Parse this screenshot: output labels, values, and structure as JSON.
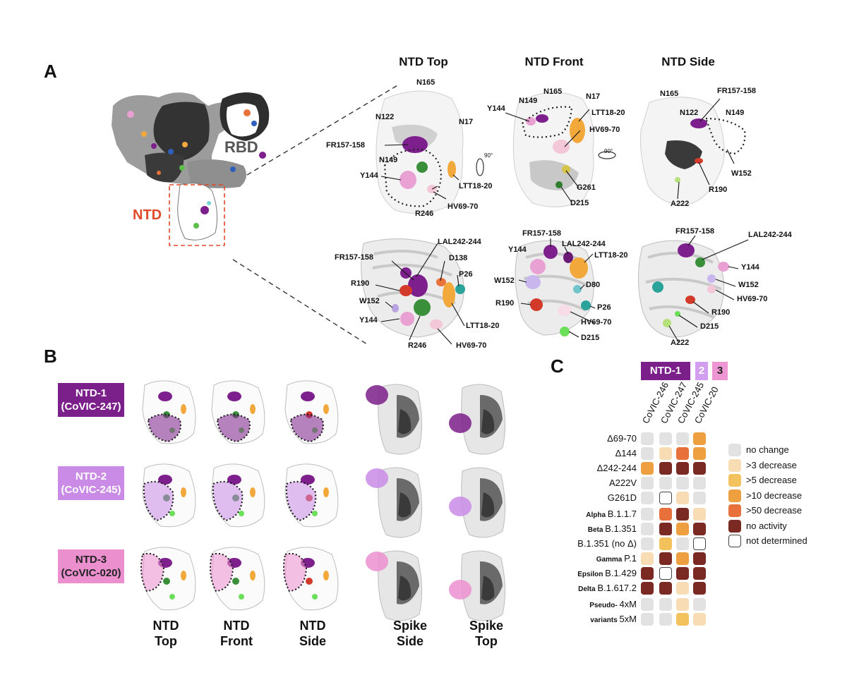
{
  "panels": {
    "a": "A",
    "b": "B",
    "c": "C"
  },
  "panel_a": {
    "view_titles": [
      "NTD Top",
      "NTD Front",
      "NTD Side"
    ],
    "rbd_label": "RBD",
    "ntd_label": "NTD",
    "labels_top_row": {
      "top": [
        "N165",
        "N122",
        "N17",
        "FR157-158",
        "N149",
        "Y144",
        "LTT18-20",
        "R246",
        "HV69-70"
      ],
      "front": [
        "N165",
        "N149",
        "N17",
        "Y144",
        "LTT18-20",
        "HV69-70",
        "G261",
        "D215"
      ],
      "side": [
        "N165",
        "FR157-158",
        "N122",
        "N149",
        "W152",
        "R190",
        "A222"
      ]
    },
    "labels_bottom_row": {
      "top": [
        "LAL242-244",
        "FR157-158",
        "D138",
        "P26",
        "R190",
        "W152",
        "Y144",
        "LTT18-20",
        "R246",
        "HV69-70"
      ],
      "front": [
        "FR157-158",
        "LAL242-244",
        "Y144",
        "LTT18-20",
        "W152",
        "D80",
        "P26",
        "R190",
        "HV69-70",
        "D215"
      ],
      "side": [
        "FR157-158",
        "LAL242-244",
        "Y144",
        "W152",
        "HV69-70",
        "R190",
        "D215",
        "A222"
      ]
    },
    "rotation_marks": [
      "90°",
      "90°"
    ]
  },
  "panel_b": {
    "antibodies": [
      {
        "name": "NTD-1",
        "clone": "(CoVIC-247)",
        "color": "#7b1f8a"
      },
      {
        "name": "NTD-2",
        "clone": "(CoVIC-245)",
        "color": "#c98be6"
      },
      {
        "name": "NTD-3",
        "clone": "(CoVIC-020)",
        "color": "#ec8fcf"
      }
    ],
    "bottom_labels": [
      {
        "l1": "NTD",
        "l2": "Top"
      },
      {
        "l1": "NTD",
        "l2": "Front"
      },
      {
        "l1": "NTD",
        "l2": "Side"
      },
      {
        "l1": "Spike",
        "l2": "Side"
      },
      {
        "l1": "Spike",
        "l2": "Top"
      }
    ]
  },
  "panel_c": {
    "groups": [
      {
        "label": "NTD-1",
        "color": "#7b1f8a"
      },
      {
        "label": "2",
        "color": "#d39df0"
      },
      {
        "label": "3",
        "color": "#ee95d4"
      }
    ],
    "columns": [
      "CoVIC-246",
      "CoVIC-247",
      "CoVIC-245",
      "CoVIC-20"
    ],
    "rows": [
      {
        "prefix": "",
        "name": "Δ69-70",
        "cells": [
          "nc",
          "nc",
          "nc",
          "d10"
        ]
      },
      {
        "prefix": "",
        "name": "Δ144",
        "cells": [
          "nc",
          "d3",
          "d50",
          "d10"
        ]
      },
      {
        "prefix": "",
        "name": "Δ242-244",
        "cells": [
          "d10",
          "na",
          "na",
          "na"
        ]
      },
      {
        "prefix": "",
        "name": "A222V",
        "cells": [
          "nc",
          "nc",
          "nc",
          "nc"
        ]
      },
      {
        "prefix": "",
        "name": "G261D",
        "cells": [
          "nc",
          "nd",
          "d3",
          "nc"
        ]
      },
      {
        "prefix": "Alpha",
        "name": "B.1.1.7",
        "cells": [
          "nc",
          "d50",
          "na",
          "d3"
        ]
      },
      {
        "prefix": "Beta",
        "name": "B.1.351",
        "cells": [
          "nc",
          "na",
          "d10",
          "na"
        ]
      },
      {
        "prefix": "",
        "name": "B.1.351 (no Δ)",
        "cells": [
          "nc",
          "d5",
          "nc",
          "nd"
        ]
      },
      {
        "prefix": "Gamma",
        "name": "P.1",
        "cells": [
          "d3",
          "na",
          "d10",
          "na"
        ]
      },
      {
        "prefix": "Epsilon",
        "name": "B.1.429",
        "cells": [
          "na",
          "nd",
          "na",
          "na"
        ]
      },
      {
        "prefix": "Delta",
        "name": "B.1.617.2",
        "cells": [
          "na",
          "na",
          "d3",
          "na"
        ]
      },
      {
        "prefix": "Pseudo-",
        "name": "4xM",
        "cells": [
          "nc",
          "nc",
          "d3",
          "nc"
        ]
      },
      {
        "prefix": "variants",
        "name": "5xM",
        "cells": [
          "nc",
          "nc",
          "d5",
          "d3"
        ]
      }
    ],
    "legend": [
      {
        "key": "nc",
        "label": "no change",
        "color": "#e2e2e2"
      },
      {
        "key": "d3",
        "label": ">3 decrease",
        "color": "#f8dcb4"
      },
      {
        "key": "d5",
        "label": ">5 decrease",
        "color": "#f4c25c"
      },
      {
        "key": "d10",
        "label": ">10 decrease",
        "color": "#eea040"
      },
      {
        "key": "d50",
        "label": ">50 decrease",
        "color": "#e8703a"
      },
      {
        "key": "na",
        "label": "no activity",
        "color": "#7a2a22"
      },
      {
        "key": "nd",
        "label": "not determined",
        "color": "#ffffff"
      }
    ]
  }
}
